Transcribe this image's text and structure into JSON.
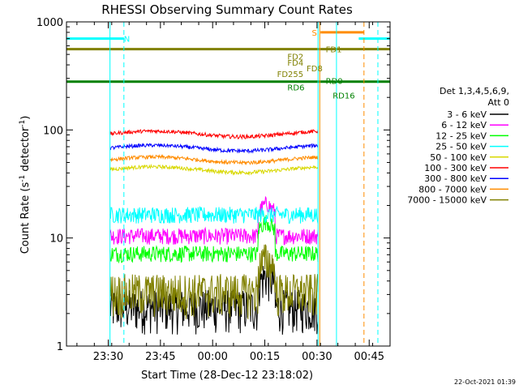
{
  "chart_data": {
    "type": "line",
    "title": "RHESSI Observing Summary Count Rates",
    "xlabel": "Start Time (28-Dec-12 23:18:02)",
    "ylabel_main": "Count Rate (s",
    "ylabel_sup1": "-1",
    "ylabel_mid": " detector",
    "ylabel_sup2": "-1",
    "ylabel_end": ")",
    "yscale": "log",
    "ylim": [
      1,
      1000
    ],
    "xlim_minutes": [
      0,
      93
    ],
    "y_ticks": [
      {
        "value": 1,
        "label": "1"
      },
      {
        "value": 10,
        "label": "10"
      },
      {
        "value": 100,
        "label": "100"
      },
      {
        "value": 1000,
        "label": "1000"
      }
    ],
    "x_ticks": [
      {
        "minute": 12,
        "label": "23:30"
      },
      {
        "minute": 27,
        "label": "23:45"
      },
      {
        "minute": 42,
        "label": "00:00"
      },
      {
        "minute": 57,
        "label": "00:15"
      },
      {
        "minute": 72,
        "label": "00:30"
      },
      {
        "minute": 87,
        "label": "00:45"
      }
    ],
    "legend_title": "Det 1,3,4,5,6,9,",
    "legend_subtitle": "Att 0",
    "observation_window_minutes": [
      12.5,
      72.3
    ],
    "series": [
      {
        "name": "3 - 6 keV",
        "color": "#000000",
        "level": 2.3
      },
      {
        "name": "6 - 12 keV",
        "color": "#ff00ff",
        "level": 10.5
      },
      {
        "name": "12 - 25 keV",
        "color": "#00ff00",
        "level": 7.2
      },
      {
        "name": "25 - 50 keV",
        "color": "#00ffff",
        "level": 16.5
      },
      {
        "name": "50 - 100 keV",
        "color": "#d8d800",
        "level": 43
      },
      {
        "name": "100 - 300 keV",
        "color": "#ff0000",
        "level": 92
      },
      {
        "name": "300 - 800 keV",
        "color": "#0000ff",
        "level": 68
      },
      {
        "name": "800 - 7000 keV",
        "color": "#ff8c00",
        "level": 53
      },
      {
        "name": "7000 - 15000 keV",
        "color": "#808000",
        "level": 3.2
      }
    ],
    "flag_lines": [
      {
        "label": "",
        "color": "#00ffff",
        "value": 700,
        "x_range": [
          0,
          16.5
        ]
      },
      {
        "label": "",
        "color": "#00ffff",
        "value": 700,
        "x_range": [
          84,
          93
        ]
      },
      {
        "label": "",
        "color": "#808000",
        "value": 560,
        "x_range": [
          0,
          93
        ]
      },
      {
        "label": "",
        "color": "#008000",
        "value": 280,
        "x_range": [
          0,
          93
        ]
      },
      {
        "label": "",
        "color": "#ff8c00",
        "value": 800,
        "x_range": [
          73,
          85.5
        ]
      }
    ],
    "flag_labels": [
      {
        "text": "N",
        "color": "#00ffff",
        "minute": 16.5,
        "value": 700
      },
      {
        "text": "S",
        "color": "#ff8c00",
        "minute": 70.5,
        "value": 800
      },
      {
        "text": "FD1",
        "color": "#808000",
        "minute": 74.5,
        "value": 560
      },
      {
        "text": "FD2",
        "color": "#808000",
        "minute": 63.5,
        "value": 480
      },
      {
        "text": "FD4",
        "color": "#808000",
        "minute": 63.5,
        "value": 420
      },
      {
        "text": "FD8",
        "color": "#808000",
        "minute": 69,
        "value": 375
      },
      {
        "text": "FD255",
        "color": "#808000",
        "minute": 60.5,
        "value": 330
      },
      {
        "text": "RD0",
        "color": "#008000",
        "minute": 74.5,
        "value": 285
      },
      {
        "text": "RD6",
        "color": "#008000",
        "minute": 63.5,
        "value": 250
      },
      {
        "text": "RD16",
        "color": "#008000",
        "minute": 76.5,
        "value": 210
      }
    ],
    "vertical_markers": [
      {
        "color": "#00ffff",
        "minute": 12.5,
        "style": "solid"
      },
      {
        "color": "#00ffff",
        "minute": 16.5,
        "style": "dashed"
      },
      {
        "color": "#00ffff",
        "minute": 72.3,
        "style": "solid"
      },
      {
        "color": "#ff8c00",
        "minute": 72.8,
        "style": "solid"
      },
      {
        "color": "#00ffff",
        "minute": 77.6,
        "style": "solid"
      },
      {
        "color": "#ff8c00",
        "minute": 85.5,
        "style": "dashed"
      },
      {
        "color": "#00ffff",
        "minute": 89.5,
        "style": "dashed"
      }
    ]
  },
  "footer": {
    "timestamp": "22-Oct-2021 01:39"
  }
}
